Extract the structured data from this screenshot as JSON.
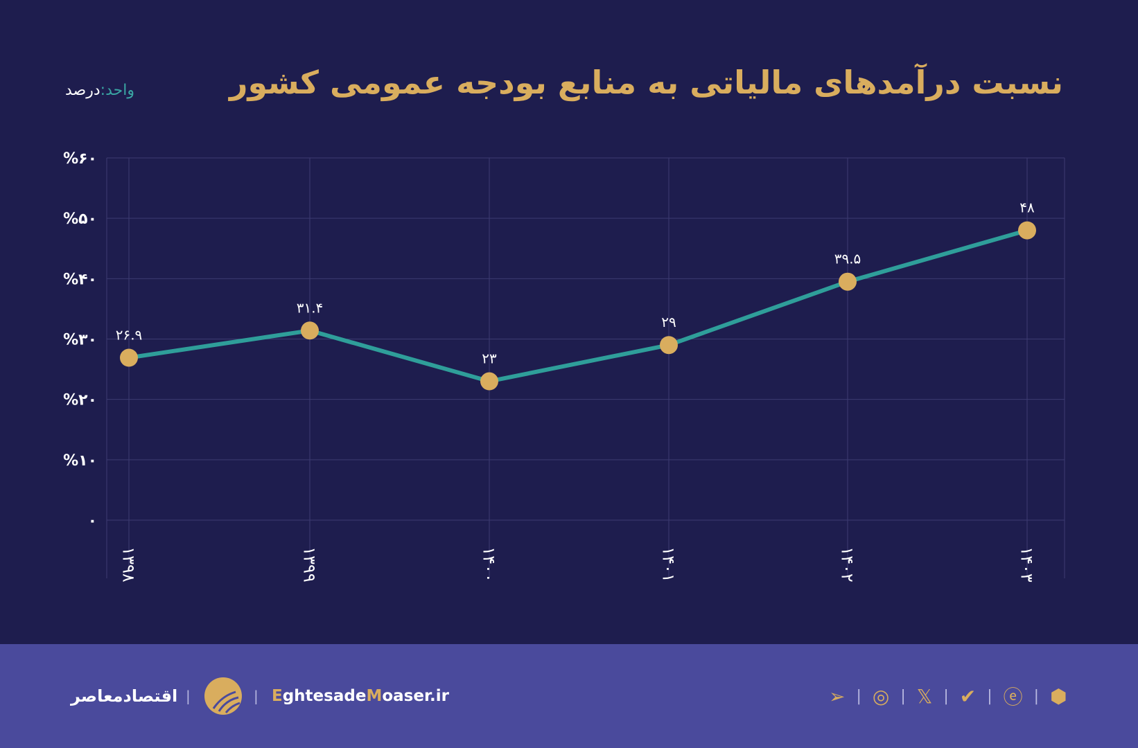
{
  "header": {
    "title": "نسبت درآمدهای مالیاتی به منابع بودجه عمومی کشور",
    "unit_label": "واحد:",
    "unit_value": "درصد"
  },
  "colors": {
    "background": "#1e1d4e",
    "line": "#2f9e9a",
    "marker": "#d9ad5e",
    "title": "#d9ad5e",
    "footer": "#4a4a9c"
  },
  "chart_data": {
    "type": "line",
    "title": "نسبت درآمدهای مالیاتی به منابع بودجه عمومی کشور",
    "categories": [
      "۱۳۹۸",
      "۱۳۹۹",
      "۱۴۰۰",
      "۱۴۰۱",
      "۱۴۰۲",
      "۱۴۰۳"
    ],
    "values": [
      26.9,
      31.4,
      23,
      29,
      39.5,
      48
    ],
    "data_labels": [
      "۲۶.۹",
      "۳۱.۴",
      "۲۳",
      "۲۹",
      "۳۹.۵",
      "۴۸"
    ],
    "yticks": [
      0,
      10,
      20,
      30,
      40,
      50,
      60
    ],
    "ytick_labels": [
      "۰",
      "%۱۰",
      "%۲۰",
      "%۳۰",
      "%۴۰",
      "%۵۰",
      "%۶۰"
    ],
    "ylim": [
      0,
      60
    ],
    "grid": true,
    "ylabel": "درصد"
  },
  "footer": {
    "brand": "اقتصادمعاصر",
    "site_e": "E",
    "site_1": "ghtesade",
    "site_m": "M",
    "site_2": "oaser.ir",
    "separator": "|",
    "icons": [
      "telegram-icon",
      "instagram-icon",
      "x-icon",
      "check-badge-icon",
      "e-app-icon",
      "hexagon-icon"
    ]
  }
}
